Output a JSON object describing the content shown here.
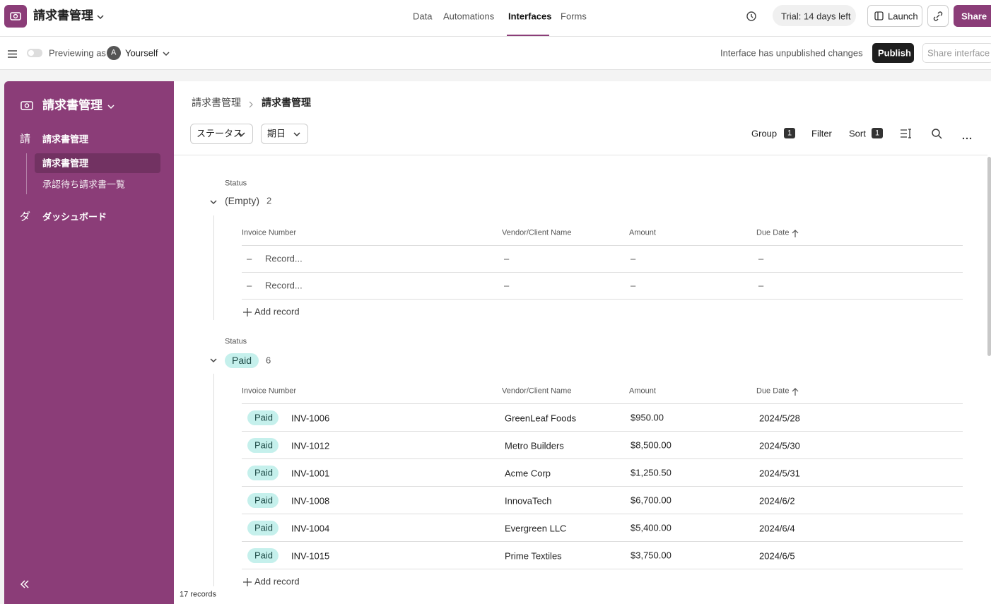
{
  "topbar": {
    "app_name": "請求書管理",
    "tabs": [
      "Data",
      "Automations",
      "Interfaces",
      "Forms"
    ],
    "active_tab": 2,
    "trial": "Trial: 14 days left",
    "launch": "Launch",
    "share": "Share"
  },
  "subbar": {
    "previewing": "Previewing as",
    "avatar": "A",
    "user": "Yourself",
    "unpublished": "Interface has unpublished changes",
    "publish": "Publish",
    "share_interface": "Share interface"
  },
  "sidebar": {
    "title": "請求書管理",
    "sections": [
      {
        "icon": "請",
        "label": "請求書管理",
        "pages": [
          "請求書管理",
          "承認待ち請求書一覧"
        ]
      },
      {
        "icon": "ダ",
        "label": "ダッシュボード"
      }
    ]
  },
  "breadcrumb": [
    "請求書管理",
    "請求書管理"
  ],
  "filters": [
    "ステータス",
    "期日"
  ],
  "toolbar": {
    "group": "Group",
    "group_count": 1,
    "filter": "Filter",
    "sort": "Sort",
    "sort_count": 1
  },
  "columns": [
    "Invoice Number",
    "Vendor/Client Name",
    "Amount",
    "Due Date"
  ],
  "groups": [
    {
      "field": "Status",
      "name": "(Empty)",
      "count": 2,
      "add": "Add record",
      "rows": [
        [
          "–",
          "Record...",
          "–",
          "–",
          "–"
        ],
        [
          "–",
          "Record...",
          "–",
          "–",
          "–"
        ]
      ]
    },
    {
      "field": "Status",
      "name": "Paid",
      "count": 6,
      "add": "Add record",
      "rows": [
        [
          "Paid",
          "INV-1006",
          "GreenLeaf Foods",
          "$950.00",
          "2024/5/28"
        ],
        [
          "Paid",
          "INV-1012",
          "Metro Builders",
          "$8,500.00",
          "2024/5/30"
        ],
        [
          "Paid",
          "INV-1001",
          "Acme Corp",
          "$1,250.50",
          "2024/5/31"
        ],
        [
          "Paid",
          "INV-1008",
          "InnovaTech",
          "$6,700.00",
          "2024/6/2"
        ],
        [
          "Paid",
          "INV-1004",
          "Evergreen LLC",
          "$5,400.00",
          "2024/6/4"
        ],
        [
          "Paid",
          "INV-1015",
          "Prime Textiles",
          "$3,750.00",
          "2024/6/5"
        ]
      ]
    }
  ],
  "footer": "17 records"
}
